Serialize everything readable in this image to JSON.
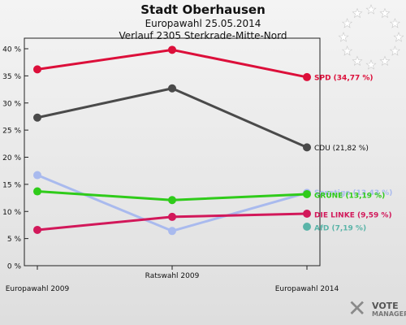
{
  "header": {
    "title": "Stadt Oberhausen",
    "subtitle": "Europawahl 25.05.2014",
    "subtitle2": "Verlauf 2305 Sterkrade-Mitte-Nord"
  },
  "logo": {
    "line1": "VOTE",
    "line2": "MANAGER",
    "icon": "vote-manager-x-logo"
  },
  "emblem": {
    "icon": "eu-stars-emblem",
    "color": "#ffffff"
  },
  "chart_data": {
    "type": "line",
    "categories": [
      "Europawahl 2009",
      "Ratswahl 2009",
      "Europawahl 2014"
    ],
    "ylim": [
      0,
      40
    ],
    "yticks": [
      "0 %",
      "5 %",
      "10 %",
      "15 %",
      "20 %",
      "25 %",
      "30 %",
      "35 %",
      "40 %"
    ],
    "ytick_values": [
      0,
      5,
      10,
      15,
      20,
      25,
      30,
      35,
      40
    ],
    "grid": false,
    "legend": "end-labels",
    "series": [
      {
        "name": "Sonstige",
        "end_label": "Sonstige (13,43 %)",
        "values": [
          16.7,
          6.4,
          13.43
        ],
        "color": "#a9baee"
      },
      {
        "name": "CDU",
        "end_label": "CDU (21,82 %)",
        "values": [
          27.3,
          32.7,
          21.82
        ],
        "color": "#4a4a4a"
      },
      {
        "name": "GRÜNE",
        "end_label": "GRÜNE (13,19 %)",
        "values": [
          13.7,
          12.1,
          13.19
        ],
        "color": "#2fcb1a"
      },
      {
        "name": "DIE LINKE",
        "end_label": "DIE LINKE (9,59 %)",
        "values": [
          6.6,
          9.0,
          9.59
        ],
        "color": "#d2185a"
      },
      {
        "name": "SPD",
        "end_label": "SPD (34,77 %)",
        "values": [
          36.2,
          39.8,
          34.77
        ],
        "color": "#dc0f3a"
      },
      {
        "name": "AfD",
        "end_label": "AfD (7,19 %)",
        "values": [
          null,
          null,
          7.19
        ],
        "color": "#5ab4a8"
      }
    ]
  }
}
